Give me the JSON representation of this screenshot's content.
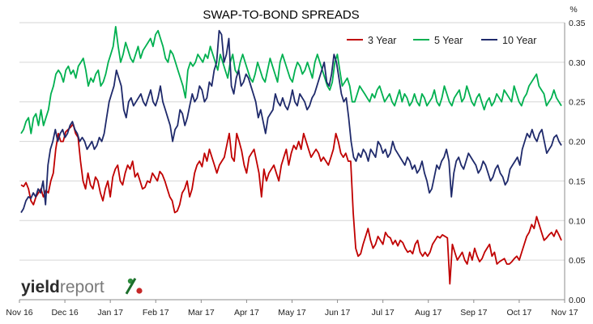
{
  "chart_data": {
    "type": "line",
    "title": "SWAP-TO-BOND SPREADS",
    "ylabel": "%",
    "ylim": [
      0,
      0.35
    ],
    "yticks": [
      "0.00",
      "0.05",
      "0.10",
      "0.15",
      "0.20",
      "0.25",
      "0.30",
      "0.35"
    ],
    "x_tick_labels": [
      "Nov 16",
      "Dec 16",
      "Jan 17",
      "Feb 17",
      "Mar 17",
      "Apr 17",
      "May 17",
      "Jun 17",
      "Jul 17",
      "Aug 17",
      "Sep 17",
      "Oct 17",
      "Nov 17"
    ],
    "grid": "horizontal",
    "legend_position": "top-right",
    "logo": {
      "text_a": "yield",
      "text_b": "report",
      "symbol": "%"
    },
    "series": [
      {
        "name": "3 Year",
        "color": "#c00000",
        "values": [
          0.145,
          0.143,
          0.148,
          0.14,
          0.125,
          0.12,
          0.13,
          0.135,
          0.14,
          0.13,
          0.138,
          0.135,
          0.15,
          0.16,
          0.19,
          0.21,
          0.2,
          0.2,
          0.212,
          0.215,
          0.218,
          0.222,
          0.21,
          0.205,
          0.175,
          0.15,
          0.14,
          0.16,
          0.145,
          0.14,
          0.155,
          0.15,
          0.135,
          0.125,
          0.14,
          0.15,
          0.13,
          0.155,
          0.165,
          0.17,
          0.15,
          0.145,
          0.16,
          0.17,
          0.165,
          0.175,
          0.155,
          0.16,
          0.15,
          0.14,
          0.142,
          0.15,
          0.148,
          0.16,
          0.155,
          0.15,
          0.162,
          0.158,
          0.15,
          0.14,
          0.13,
          0.125,
          0.11,
          0.112,
          0.12,
          0.135,
          0.14,
          0.15,
          0.13,
          0.14,
          0.16,
          0.17,
          0.175,
          0.168,
          0.185,
          0.175,
          0.19,
          0.18,
          0.17,
          0.16,
          0.17,
          0.175,
          0.18,
          0.195,
          0.21,
          0.18,
          0.175,
          0.21,
          0.2,
          0.188,
          0.17,
          0.16,
          0.18,
          0.185,
          0.19,
          0.175,
          0.16,
          0.13,
          0.165,
          0.15,
          0.16,
          0.165,
          0.17,
          0.16,
          0.15,
          0.17,
          0.18,
          0.19,
          0.17,
          0.185,
          0.195,
          0.19,
          0.2,
          0.19,
          0.21,
          0.2,
          0.19,
          0.18,
          0.185,
          0.19,
          0.185,
          0.175,
          0.18,
          0.175,
          0.17,
          0.18,
          0.19,
          0.21,
          0.2,
          0.185,
          0.18,
          0.185,
          0.175,
          0.175,
          0.11,
          0.065,
          0.055,
          0.058,
          0.07,
          0.08,
          0.09,
          0.075,
          0.065,
          0.07,
          0.08,
          0.075,
          0.07,
          0.085,
          0.08,
          0.078,
          0.07,
          0.075,
          0.068,
          0.075,
          0.072,
          0.065,
          0.06,
          0.062,
          0.058,
          0.07,
          0.075,
          0.06,
          0.055,
          0.06,
          0.055,
          0.06,
          0.07,
          0.075,
          0.08,
          0.078,
          0.082,
          0.08,
          0.078,
          0.02,
          0.07,
          0.06,
          0.05,
          0.055,
          0.06,
          0.05,
          0.045,
          0.06,
          0.05,
          0.065,
          0.055,
          0.048,
          0.052,
          0.06,
          0.065,
          0.07,
          0.055,
          0.06,
          0.045,
          0.048,
          0.05,
          0.052,
          0.045,
          0.045,
          0.048,
          0.052,
          0.055,
          0.05,
          0.06,
          0.07,
          0.08,
          0.085,
          0.095,
          0.09,
          0.105,
          0.095,
          0.085,
          0.075,
          0.078,
          0.082,
          0.085,
          0.08,
          0.088,
          0.082,
          0.075
        ]
      },
      {
        "name": "5 Year",
        "color": "#00b050",
        "values": [
          0.21,
          0.215,
          0.225,
          0.23,
          0.21,
          0.23,
          0.235,
          0.22,
          0.24,
          0.22,
          0.23,
          0.24,
          0.26,
          0.27,
          0.285,
          0.29,
          0.285,
          0.275,
          0.29,
          0.295,
          0.285,
          0.29,
          0.28,
          0.295,
          0.3,
          0.305,
          0.29,
          0.27,
          0.28,
          0.275,
          0.285,
          0.29,
          0.27,
          0.275,
          0.285,
          0.3,
          0.31,
          0.32,
          0.345,
          0.32,
          0.3,
          0.31,
          0.325,
          0.315,
          0.305,
          0.3,
          0.31,
          0.32,
          0.305,
          0.315,
          0.32,
          0.325,
          0.33,
          0.32,
          0.335,
          0.34,
          0.33,
          0.32,
          0.305,
          0.3,
          0.315,
          0.31,
          0.3,
          0.29,
          0.28,
          0.27,
          0.255,
          0.29,
          0.3,
          0.295,
          0.3,
          0.31,
          0.305,
          0.3,
          0.31,
          0.305,
          0.32,
          0.31,
          0.3,
          0.29,
          0.31,
          0.3,
          0.29,
          0.28,
          0.3,
          0.31,
          0.29,
          0.285,
          0.3,
          0.31,
          0.3,
          0.29,
          0.28,
          0.275,
          0.285,
          0.3,
          0.29,
          0.28,
          0.275,
          0.29,
          0.305,
          0.295,
          0.285,
          0.275,
          0.3,
          0.31,
          0.3,
          0.29,
          0.28,
          0.275,
          0.29,
          0.3,
          0.295,
          0.285,
          0.29,
          0.3,
          0.29,
          0.28,
          0.3,
          0.31,
          0.3,
          0.29,
          0.28,
          0.27,
          0.265,
          0.275,
          0.3,
          0.31,
          0.29,
          0.27,
          0.275,
          0.28,
          0.27,
          0.25,
          0.25,
          0.26,
          0.27,
          0.265,
          0.26,
          0.255,
          0.25,
          0.26,
          0.255,
          0.265,
          0.27,
          0.26,
          0.25,
          0.255,
          0.26,
          0.25,
          0.245,
          0.255,
          0.265,
          0.25,
          0.26,
          0.255,
          0.245,
          0.25,
          0.26,
          0.25,
          0.245,
          0.26,
          0.255,
          0.245,
          0.25,
          0.255,
          0.265,
          0.25,
          0.245,
          0.255,
          0.27,
          0.26,
          0.25,
          0.245,
          0.255,
          0.26,
          0.265,
          0.25,
          0.255,
          0.27,
          0.26,
          0.25,
          0.245,
          0.255,
          0.26,
          0.25,
          0.24,
          0.25,
          0.255,
          0.245,
          0.25,
          0.26,
          0.255,
          0.25,
          0.265,
          0.26,
          0.255,
          0.25,
          0.27,
          0.26,
          0.25,
          0.245,
          0.255,
          0.26,
          0.27,
          0.275,
          0.28,
          0.285,
          0.27,
          0.265,
          0.26,
          0.245,
          0.25,
          0.255,
          0.265,
          0.255,
          0.25,
          0.245
        ]
      },
      {
        "name": "10 Year",
        "color": "#1f2a6b",
        "values": [
          0.11,
          0.115,
          0.125,
          0.13,
          0.128,
          0.135,
          0.13,
          0.14,
          0.135,
          0.15,
          0.12,
          0.17,
          0.19,
          0.2,
          0.215,
          0.2,
          0.21,
          0.215,
          0.205,
          0.21,
          0.22,
          0.225,
          0.215,
          0.21,
          0.2,
          0.205,
          0.2,
          0.19,
          0.195,
          0.2,
          0.19,
          0.195,
          0.205,
          0.2,
          0.21,
          0.23,
          0.25,
          0.26,
          0.27,
          0.29,
          0.28,
          0.27,
          0.24,
          0.23,
          0.25,
          0.255,
          0.245,
          0.25,
          0.255,
          0.26,
          0.25,
          0.245,
          0.255,
          0.265,
          0.25,
          0.245,
          0.255,
          0.27,
          0.25,
          0.24,
          0.23,
          0.22,
          0.2,
          0.215,
          0.22,
          0.24,
          0.235,
          0.22,
          0.23,
          0.245,
          0.26,
          0.25,
          0.255,
          0.27,
          0.265,
          0.25,
          0.255,
          0.275,
          0.27,
          0.29,
          0.3,
          0.34,
          0.335,
          0.3,
          0.31,
          0.33,
          0.27,
          0.26,
          0.28,
          0.29,
          0.27,
          0.275,
          0.285,
          0.28,
          0.27,
          0.26,
          0.25,
          0.23,
          0.24,
          0.225,
          0.21,
          0.23,
          0.235,
          0.24,
          0.26,
          0.25,
          0.245,
          0.255,
          0.245,
          0.24,
          0.25,
          0.265,
          0.25,
          0.245,
          0.26,
          0.255,
          0.25,
          0.24,
          0.245,
          0.255,
          0.26,
          0.27,
          0.28,
          0.29,
          0.3,
          0.275,
          0.27,
          0.285,
          0.31,
          0.3,
          0.28,
          0.26,
          0.25,
          0.255,
          0.23,
          0.2,
          0.18,
          0.175,
          0.185,
          0.18,
          0.19,
          0.185,
          0.175,
          0.19,
          0.185,
          0.18,
          0.2,
          0.195,
          0.185,
          0.19,
          0.18,
          0.185,
          0.2,
          0.19,
          0.185,
          0.18,
          0.175,
          0.17,
          0.18,
          0.175,
          0.165,
          0.17,
          0.16,
          0.165,
          0.175,
          0.16,
          0.15,
          0.135,
          0.14,
          0.155,
          0.17,
          0.165,
          0.175,
          0.18,
          0.19,
          0.175,
          0.13,
          0.16,
          0.175,
          0.18,
          0.17,
          0.165,
          0.175,
          0.185,
          0.18,
          0.175,
          0.17,
          0.16,
          0.165,
          0.175,
          0.17,
          0.16,
          0.15,
          0.155,
          0.165,
          0.17,
          0.16,
          0.155,
          0.145,
          0.15,
          0.165,
          0.17,
          0.175,
          0.18,
          0.17,
          0.19,
          0.2,
          0.21,
          0.205,
          0.215,
          0.205,
          0.2,
          0.21,
          0.215,
          0.2,
          0.185,
          0.19,
          0.195,
          0.205,
          0.208,
          0.2,
          0.195
        ]
      }
    ]
  }
}
